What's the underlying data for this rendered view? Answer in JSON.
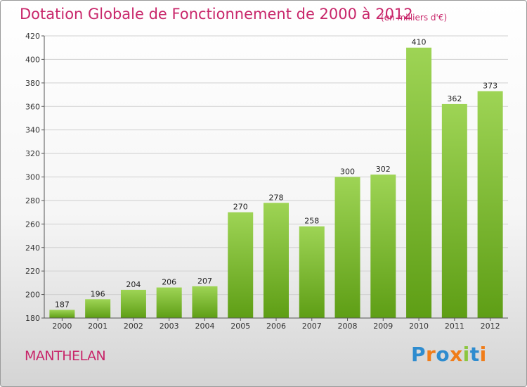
{
  "chart_data": {
    "type": "bar",
    "title": "Dotation Globale de Fonctionnement de 2000 à 2012",
    "subtitle": "(en milliers d'€)",
    "categories": [
      "2000",
      "2001",
      "2002",
      "2003",
      "2004",
      "2005",
      "2006",
      "2007",
      "2008",
      "2009",
      "2010",
      "2011",
      "2012"
    ],
    "values": [
      187,
      196,
      204,
      206,
      207,
      270,
      278,
      258,
      300,
      302,
      410,
      362,
      373
    ],
    "ylim": [
      180,
      420
    ],
    "yticks": [
      180,
      200,
      220,
      240,
      260,
      280,
      300,
      320,
      340,
      360,
      380,
      400,
      420
    ],
    "grid": true,
    "colors": {
      "bar_top": "#9ed455",
      "bar_bottom": "#5e9e15",
      "title": "#c8266a"
    }
  },
  "commune": "MANTHELAN",
  "brand": {
    "letters": [
      "P",
      "r",
      "o",
      "x",
      "i",
      "t",
      "i"
    ],
    "colors": [
      "#2e8ccf",
      "#f07d1a",
      "#2e8ccf",
      "#f07d1a",
      "#8cc63f",
      "#2e8ccf",
      "#f07d1a"
    ]
  }
}
